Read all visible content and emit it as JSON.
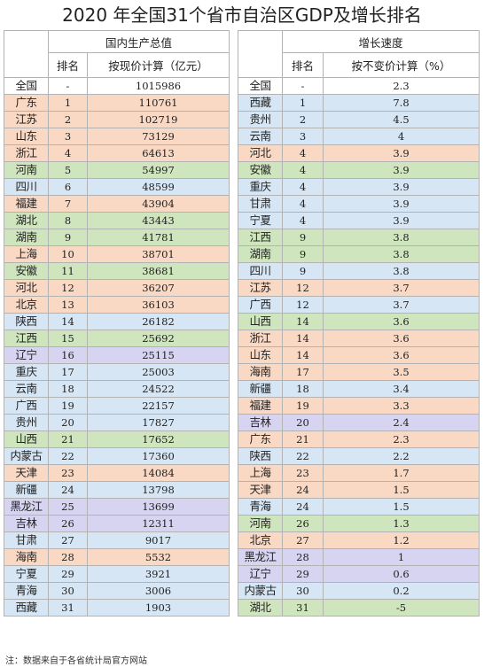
{
  "title": "2020 年全国31个省市自治区GDP及增长排名",
  "header": {
    "left_group": "国内生产总值",
    "right_group": "增长速度",
    "rank_label_left": "排名",
    "value_label_left": "按现价计算（亿元）",
    "rank_label_right": "排名",
    "value_label_right": "按不变价计算（%）"
  },
  "colors": {
    "orange": "#f9d8c4",
    "blue": "#d6e6f5",
    "green": "#cfe5bd",
    "purple": "#d6d4f0",
    "white": "#ffffff"
  },
  "rows": [
    {
      "lp": "全国",
      "lr": "-",
      "lv": "1015986",
      "lc": "white",
      "rp": "全国",
      "rr": "-",
      "rv": "2.3",
      "rc": "white"
    },
    {
      "lp": "广东",
      "lr": "1",
      "lv": "110761",
      "lc": "orange",
      "rp": "西藏",
      "rr": "1",
      "rv": "7.8",
      "rc": "blue"
    },
    {
      "lp": "江苏",
      "lr": "2",
      "lv": "102719",
      "lc": "orange",
      "rp": "贵州",
      "rr": "2",
      "rv": "4.5",
      "rc": "blue"
    },
    {
      "lp": "山东",
      "lr": "3",
      "lv": "73129",
      "lc": "orange",
      "rp": "云南",
      "rr": "3",
      "rv": "4",
      "rc": "blue"
    },
    {
      "lp": "浙江",
      "lr": "4",
      "lv": "64613",
      "lc": "orange",
      "rp": "河北",
      "rr": "4",
      "rv": "3.9",
      "rc": "orange"
    },
    {
      "lp": "河南",
      "lr": "5",
      "lv": "54997",
      "lc": "green",
      "rp": "安徽",
      "rr": "4",
      "rv": "3.9",
      "rc": "green"
    },
    {
      "lp": "四川",
      "lr": "6",
      "lv": "48599",
      "lc": "blue",
      "rp": "重庆",
      "rr": "4",
      "rv": "3.9",
      "rc": "blue"
    },
    {
      "lp": "福建",
      "lr": "7",
      "lv": "43904",
      "lc": "orange",
      "rp": "甘肃",
      "rr": "4",
      "rv": "3.9",
      "rc": "blue"
    },
    {
      "lp": "湖北",
      "lr": "8",
      "lv": "43443",
      "lc": "green",
      "rp": "宁夏",
      "rr": "4",
      "rv": "3.9",
      "rc": "blue"
    },
    {
      "lp": "湖南",
      "lr": "9",
      "lv": "41781",
      "lc": "green",
      "rp": "江西",
      "rr": "9",
      "rv": "3.8",
      "rc": "green"
    },
    {
      "lp": "上海",
      "lr": "10",
      "lv": "38701",
      "lc": "orange",
      "rp": "湖南",
      "rr": "9",
      "rv": "3.8",
      "rc": "green"
    },
    {
      "lp": "安徽",
      "lr": "11",
      "lv": "38681",
      "lc": "green",
      "rp": "四川",
      "rr": "9",
      "rv": "3.8",
      "rc": "blue"
    },
    {
      "lp": "河北",
      "lr": "12",
      "lv": "36207",
      "lc": "orange",
      "rp": "江苏",
      "rr": "12",
      "rv": "3.7",
      "rc": "orange"
    },
    {
      "lp": "北京",
      "lr": "13",
      "lv": "36103",
      "lc": "orange",
      "rp": "广西",
      "rr": "12",
      "rv": "3.7",
      "rc": "blue"
    },
    {
      "lp": "陕西",
      "lr": "14",
      "lv": "26182",
      "lc": "blue",
      "rp": "山西",
      "rr": "14",
      "rv": "3.6",
      "rc": "green"
    },
    {
      "lp": "江西",
      "lr": "15",
      "lv": "25692",
      "lc": "green",
      "rp": "浙江",
      "rr": "14",
      "rv": "3.6",
      "rc": "orange"
    },
    {
      "lp": "辽宁",
      "lr": "16",
      "lv": "25115",
      "lc": "purple",
      "rp": "山东",
      "rr": "14",
      "rv": "3.6",
      "rc": "orange"
    },
    {
      "lp": "重庆",
      "lr": "17",
      "lv": "25003",
      "lc": "blue",
      "rp": "海南",
      "rr": "17",
      "rv": "3.5",
      "rc": "orange"
    },
    {
      "lp": "云南",
      "lr": "18",
      "lv": "24522",
      "lc": "blue",
      "rp": "新疆",
      "rr": "18",
      "rv": "3.4",
      "rc": "blue"
    },
    {
      "lp": "广西",
      "lr": "19",
      "lv": "22157",
      "lc": "blue",
      "rp": "福建",
      "rr": "19",
      "rv": "3.3",
      "rc": "orange"
    },
    {
      "lp": "贵州",
      "lr": "20",
      "lv": "17827",
      "lc": "blue",
      "rp": "吉林",
      "rr": "20",
      "rv": "2.4",
      "rc": "purple"
    },
    {
      "lp": "山西",
      "lr": "21",
      "lv": "17652",
      "lc": "green",
      "rp": "广东",
      "rr": "21",
      "rv": "2.3",
      "rc": "orange"
    },
    {
      "lp": "内蒙古",
      "lr": "22",
      "lv": "17360",
      "lc": "blue",
      "rp": "陕西",
      "rr": "22",
      "rv": "2.2",
      "rc": "blue"
    },
    {
      "lp": "天津",
      "lr": "23",
      "lv": "14084",
      "lc": "orange",
      "rp": "上海",
      "rr": "23",
      "rv": "1.7",
      "rc": "orange"
    },
    {
      "lp": "新疆",
      "lr": "24",
      "lv": "13798",
      "lc": "blue",
      "rp": "天津",
      "rr": "24",
      "rv": "1.5",
      "rc": "orange"
    },
    {
      "lp": "黑龙江",
      "lr": "25",
      "lv": "13699",
      "lc": "purple",
      "rp": "青海",
      "rr": "24",
      "rv": "1.5",
      "rc": "blue"
    },
    {
      "lp": "吉林",
      "lr": "26",
      "lv": "12311",
      "lc": "purple",
      "rp": "河南",
      "rr": "26",
      "rv": "1.3",
      "rc": "green"
    },
    {
      "lp": "甘肃",
      "lr": "27",
      "lv": "9017",
      "lc": "blue",
      "rp": "北京",
      "rr": "27",
      "rv": "1.2",
      "rc": "orange"
    },
    {
      "lp": "海南",
      "lr": "28",
      "lv": "5532",
      "lc": "orange",
      "rp": "黑龙江",
      "rr": "28",
      "rv": "1",
      "rc": "purple"
    },
    {
      "lp": "宁夏",
      "lr": "29",
      "lv": "3921",
      "lc": "blue",
      "rp": "辽宁",
      "rr": "29",
      "rv": "0.6",
      "rc": "purple"
    },
    {
      "lp": "青海",
      "lr": "30",
      "lv": "3006",
      "lc": "blue",
      "rp": "内蒙古",
      "rr": "30",
      "rv": "0.2",
      "rc": "blue"
    },
    {
      "lp": "西藏",
      "lr": "31",
      "lv": "1903",
      "lc": "blue",
      "rp": "湖北",
      "rr": "31",
      "rv": "-5",
      "rc": "green"
    }
  ],
  "note": "注：数据来自于各省统计局官方网站"
}
